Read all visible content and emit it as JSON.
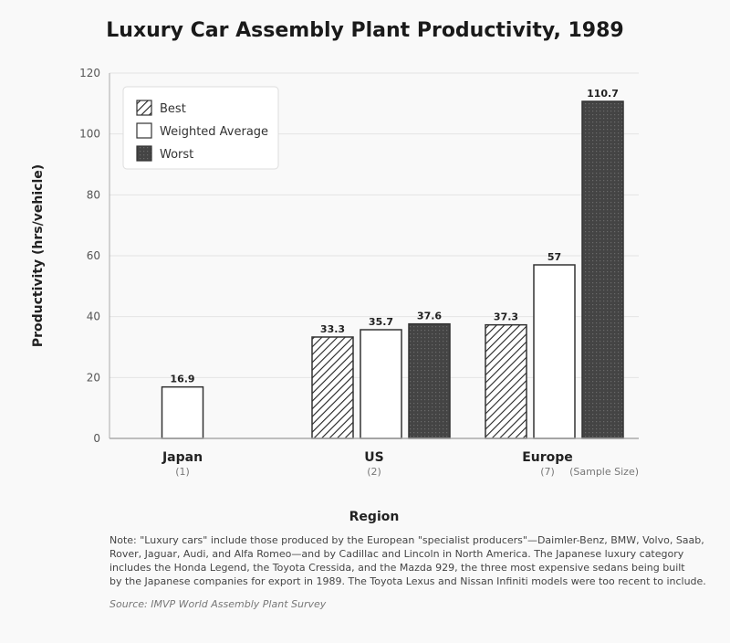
{
  "chart_data": {
    "type": "bar",
    "title": "Luxury Car Assembly Plant Productivity, 1989",
    "xlabel": "Region",
    "ylabel": "Productivity (hrs/vehicle)",
    "ylim": [
      0,
      120
    ],
    "yticks": [
      0,
      20,
      40,
      60,
      80,
      100,
      120
    ],
    "grid": true,
    "legend_position": "top-left",
    "categories": [
      "Japan",
      "US",
      "Europe"
    ],
    "sample_sizes": [
      "(1)",
      "(2)",
      "(7)"
    ],
    "sample_size_label": "(Sample Size)",
    "series": [
      {
        "name": "Best",
        "pattern": "hatch",
        "values": [
          null,
          33.3,
          37.3
        ],
        "labels": [
          "",
          "33.3",
          "37.3"
        ]
      },
      {
        "name": "Weighted Average",
        "pattern": "solid-white",
        "values": [
          16.9,
          35.7,
          57
        ],
        "labels": [
          "16.9",
          "35.7",
          "57"
        ]
      },
      {
        "name": "Worst",
        "pattern": "dark-dots",
        "values": [
          null,
          37.6,
          110.7
        ],
        "labels": [
          "",
          "37.6",
          "110.7"
        ]
      }
    ],
    "colors": {
      "bar_edge": "#333333",
      "worst_fill": "#444444",
      "grid": "#e4e4e4",
      "background": "#f9f9f9"
    }
  },
  "note": [
    "Note: \"Luxury cars\" include those produced by the European \"specialist producers\"—Daimler-Benz, BMW, Volvo, Saab,",
    "Rover, Jaguar, Audi, and Alfa Romeo—and by Cadillac and Lincoln in North America. The Japanese luxury category",
    "includes the Honda Legend, the Toyota Cressida, and the Mazda 929, the three most expensive sedans being built",
    "by the Japanese companies for export in 1989. The Toyota Lexus and Nissan Infiniti models were too recent to include."
  ],
  "source": "Source: IMVP World Assembly Plant Survey"
}
